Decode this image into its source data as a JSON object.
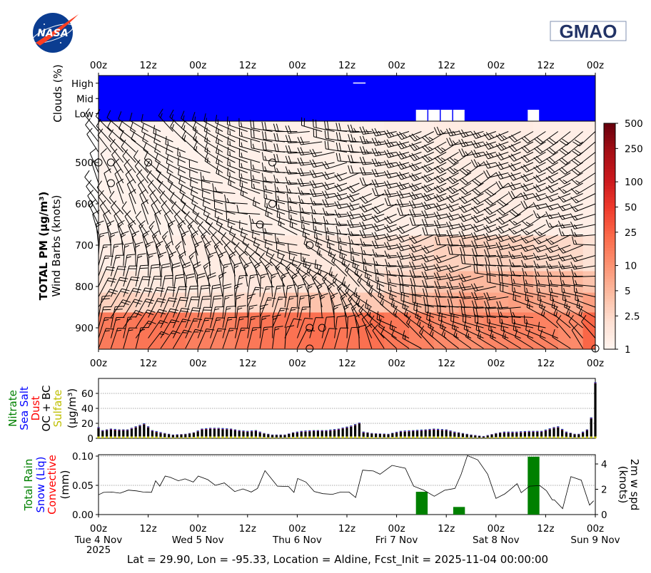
{
  "logos": {
    "left": "NASA",
    "right": "GMAO"
  },
  "footer": "Lat = 29.90, Lon = -95.33, Location = Aldine, Fcst_Init = 2025-11-04 00:00:00",
  "time_axis": {
    "hours_range": [
      0,
      120
    ],
    "tick_labels": [
      "00z",
      "12z",
      "00z",
      "12z",
      "00z",
      "12z",
      "00z",
      "12z",
      "00z",
      "12z",
      "00z"
    ],
    "date_labels": [
      {
        "hour": 0,
        "text": "Tue 4 Nov"
      },
      {
        "hour": 24,
        "text": "Wed 5 Nov"
      },
      {
        "hour": 48,
        "text": "Thu 6 Nov"
      },
      {
        "hour": 72,
        "text": "Fri 7 Nov"
      },
      {
        "hour": 96,
        "text": "Sat 8 Nov"
      },
      {
        "hour": 120,
        "text": "Sun 9 Nov"
      }
    ],
    "year_label": "2025"
  },
  "chart_data": [
    {
      "type": "heatmap",
      "panel": "clouds",
      "ylabel": "Clouds (%)",
      "rows": [
        "High",
        "Mid",
        "Low"
      ],
      "fill_color": "#0000ff",
      "default_cover_percent": 100,
      "clear_segments": [
        {
          "row": "High",
          "t0": 61.5,
          "t1": 64.5,
          "thin": true
        },
        {
          "row": "Low",
          "t0": 76.5,
          "t1": 79.5
        },
        {
          "row": "Low",
          "t0": 79.5,
          "t1": 82.5
        },
        {
          "row": "Low",
          "t0": 82.5,
          "t1": 85.5
        },
        {
          "row": "Low",
          "t0": 85.5,
          "t1": 88.5
        },
        {
          "row": "Low",
          "t0": 103.5,
          "t1": 106.5
        }
      ]
    },
    {
      "type": "heatmap",
      "panel": "pm",
      "ylabel_bold": "TOTAL PM (μg/m³)",
      "ylabel": "Wind Barbs (knots)",
      "y_ticks": [
        500,
        600,
        700,
        800,
        900
      ],
      "ylim": [
        952,
        400
      ],
      "colorscale": "Reds (log)",
      "colorbar_ticks": [
        "1",
        "2.5",
        "5",
        "10",
        "25",
        "50",
        "100",
        "250",
        "500"
      ],
      "colorbar_range": [
        1,
        500
      ],
      "level_edges_hpa": [
        952,
        862,
        814,
        762,
        676,
        400
      ],
      "time_edges_step_h": 6,
      "pm_values": [
        [
          16,
          17,
          18,
          18,
          15,
          14,
          17,
          18,
          19,
          20,
          18,
          20,
          17,
          14,
          12,
          11,
          13,
          14,
          14,
          12,
          24
        ],
        [
          3,
          3,
          2.5,
          2.5,
          2,
          2,
          2.5,
          3,
          4,
          4,
          3,
          3.5,
          4,
          5,
          6,
          8,
          7,
          8,
          7,
          6,
          8
        ],
        [
          1.8,
          1.8,
          1.5,
          1.5,
          1.5,
          1.5,
          1.6,
          1.8,
          1.8,
          2,
          1.8,
          2,
          2.5,
          3,
          4,
          5,
          5,
          6,
          5,
          5,
          4
        ],
        [
          1.3,
          1.3,
          1.3,
          1.3,
          1.4,
          1.4,
          1.4,
          1.5,
          1.6,
          1.6,
          1.6,
          1.8,
          2,
          2.5,
          3,
          3,
          3,
          3,
          2.5,
          2.5,
          2
        ],
        [
          1.1,
          1.1,
          1.1,
          1.1,
          1.1,
          1.2,
          1.2,
          1.2,
          1.2,
          1.2,
          1.2,
          1.2,
          1.3,
          1.3,
          1.4,
          1.4,
          1.4,
          1.4,
          1.3,
          1.3,
          1.3
        ]
      ],
      "wind": {
        "levels_hpa": [
          450,
          550,
          650,
          750,
          850,
          950
        ],
        "hours": [
          0,
          12,
          24,
          36,
          48,
          60,
          72,
          84,
          96,
          108,
          120
        ],
        "direction_deg": [
          [
            320,
            310,
            300,
            290,
            280,
            270,
            260,
            250,
            245,
            240,
            240
          ],
          [
            330,
            320,
            300,
            280,
            270,
            260,
            250,
            245,
            245,
            240,
            240
          ],
          [
            340,
            330,
            310,
            290,
            280,
            270,
            260,
            255,
            250,
            250,
            250
          ],
          [
            10,
            0,
            340,
            320,
            300,
            290,
            270,
            265,
            265,
            265,
            270
          ],
          [
            20,
            20,
            15,
            10,
            0,
            340,
            290,
            275,
            275,
            280,
            290
          ],
          [
            25,
            25,
            20,
            20,
            15,
            10,
            320,
            300,
            300,
            310,
            320
          ]
        ],
        "speed_knots": [
          [
            10,
            10,
            15,
            15,
            20,
            20,
            25,
            25,
            25,
            20,
            20
          ],
          [
            10,
            10,
            10,
            15,
            15,
            20,
            20,
            25,
            20,
            20,
            15
          ],
          [
            10,
            10,
            10,
            10,
            15,
            15,
            20,
            20,
            20,
            15,
            15
          ],
          [
            15,
            15,
            15,
            10,
            10,
            15,
            15,
            20,
            20,
            15,
            15
          ],
          [
            20,
            20,
            20,
            15,
            15,
            15,
            15,
            20,
            20,
            15,
            15
          ],
          [
            15,
            15,
            15,
            15,
            10,
            10,
            10,
            15,
            15,
            10,
            10
          ]
        ],
        "calm_points": [
          {
            "hour": 0,
            "hpa": 500
          },
          {
            "hour": 3,
            "hpa": 500
          },
          {
            "hour": 12,
            "hpa": 500
          },
          {
            "hour": 42,
            "hpa": 500
          },
          {
            "hour": 3,
            "hpa": 550
          },
          {
            "hour": 42,
            "hpa": 600
          },
          {
            "hour": 39,
            "hpa": 650
          },
          {
            "hour": 51,
            "hpa": 700
          },
          {
            "hour": 51,
            "hpa": 900
          },
          {
            "hour": 54,
            "hpa": 900
          },
          {
            "hour": 51,
            "hpa": 950
          },
          {
            "hour": 120,
            "hpa": 950
          }
        ]
      }
    },
    {
      "type": "bar",
      "panel": "aerosol",
      "stacked": true,
      "ylabel_parts": [
        {
          "text": "Nitrate",
          "color": "#008000"
        },
        {
          "text": "Sea Salt",
          "color": "#0000ff"
        },
        {
          "text": "Dust",
          "color": "#ff0000"
        },
        {
          "text": "OC + BC",
          "color": "#000000"
        },
        {
          "text": "Sulfate",
          "color": "#bfbf00"
        },
        {
          "text": "(μg/m³)",
          "color": "#000000"
        }
      ],
      "y_ticks": [
        "0",
        "20",
        "40",
        "60"
      ],
      "ylim": [
        0,
        80
      ],
      "grid": true,
      "total_hours": [
        0,
        1,
        3,
        5,
        7,
        10,
        11,
        12,
        13,
        16,
        18,
        21,
        23,
        25,
        27,
        29,
        32,
        34,
        36,
        38,
        40,
        42,
        45,
        47,
        49,
        52,
        55,
        58,
        61,
        63,
        64,
        66,
        70,
        73,
        76,
        79,
        81,
        84,
        86,
        88,
        90,
        93,
        96,
        98,
        101,
        104,
        107,
        110,
        111,
        113,
        115,
        116,
        118,
        119,
        120
      ],
      "total_values": [
        15,
        11,
        13,
        12,
        12,
        18,
        20,
        16,
        11,
        7,
        5,
        6,
        8,
        13,
        14,
        14,
        13,
        11,
        10,
        11,
        7,
        5,
        5,
        8,
        10,
        11,
        11,
        13,
        17,
        21,
        9,
        7,
        6,
        10,
        11,
        12,
        13,
        12,
        9,
        7,
        5,
        3,
        7,
        9,
        9,
        10,
        10,
        15,
        16,
        9,
        6,
        6,
        12,
        28,
        75
      ],
      "component_estimates": {
        "sulfate": 2.5,
        "dust": 0.4,
        "sea_salt": 0.8,
        "nitrate": 0.3
      },
      "colors": {
        "sulfate": "#bfbf00",
        "oc_bc": "#000000",
        "dust": "#ff0000",
        "sea_salt": "#0000ff",
        "nitrate": "#008000"
      }
    },
    {
      "type": "bar+line",
      "panel": "precip",
      "ylabel_parts": [
        {
          "text": "Total Rain",
          "color": "#008000"
        },
        {
          "text": "Snow (Liq)",
          "color": "#0000ff"
        },
        {
          "text": "Convective",
          "color": "#ff0000"
        },
        {
          "text": "(mm)",
          "color": "#000000"
        }
      ],
      "y_ticks": [
        "0.00",
        "0.05",
        "0.10"
      ],
      "ylim": [
        0,
        0.1
      ],
      "rain_bars": [
        {
          "t0": 76.5,
          "t1": 79.5,
          "value": 0.039
        },
        {
          "t0": 85.5,
          "t1": 88.5,
          "value": 0.013
        },
        {
          "t0": 103.5,
          "t1": 106.5,
          "value": 0.099
        }
      ],
      "rain_color": "#008000",
      "y2label": [
        "2m w spd",
        "(knots)"
      ],
      "y2_ticks": [
        "0",
        "2",
        "4"
      ],
      "y2lim": [
        0,
        4.6
      ],
      "wind_speed_hours": [
        0,
        1.2,
        3.2,
        5.2,
        7.2,
        9.2,
        10.8,
        12.8,
        13.8,
        14.8,
        16.1,
        17.3,
        19.3,
        20.9,
        22.9,
        24.1,
        26.4,
        28.2,
        30.4,
        32.9,
        34.9,
        36.9,
        38.4,
        40.2,
        43.2,
        45.9,
        47.2,
        48.1,
        50.1,
        52.1,
        54.2,
        56.5,
        58.5,
        60.5,
        62.1,
        63.8,
        66.4,
        68.0,
        70.9,
        74.1,
        76.1,
        78.6,
        81.1,
        83.6,
        86.1,
        87.6,
        89.1,
        91.6,
        94.0,
        96.0,
        98.1,
        99.1,
        101.1,
        102.1,
        104.1,
        106.6,
        108.2,
        109.6,
        110.1,
        112.1,
        114.1,
        116.6,
        118.6,
        119.6
      ],
      "wind_speed_values": [
        1.56,
        1.75,
        1.78,
        1.69,
        1.93,
        1.87,
        1.78,
        1.76,
        2.67,
        2.25,
        3.04,
        2.95,
        2.67,
        2.82,
        2.57,
        3.04,
        2.76,
        2.31,
        2.5,
        1.82,
        2.03,
        1.78,
        2.07,
        3.47,
        2.25,
        2.22,
        1.75,
        2.85,
        2.57,
        1.82,
        1.65,
        1.6,
        1.78,
        1.78,
        1.35,
        3.51,
        3.44,
        3.19,
        3.89,
        3.66,
        2.25,
        1.92,
        1.45,
        1.92,
        2.07,
        3.19,
        4.66,
        4.32,
        3.19,
        1.28,
        1.63,
        1.88,
        2.44,
        1.73,
        2.25,
        2.29,
        1.88,
        1.16,
        1.16,
        0.47,
        3.0,
        2.72,
        0.75,
        1.09
      ],
      "line_color": "#000000"
    }
  ]
}
